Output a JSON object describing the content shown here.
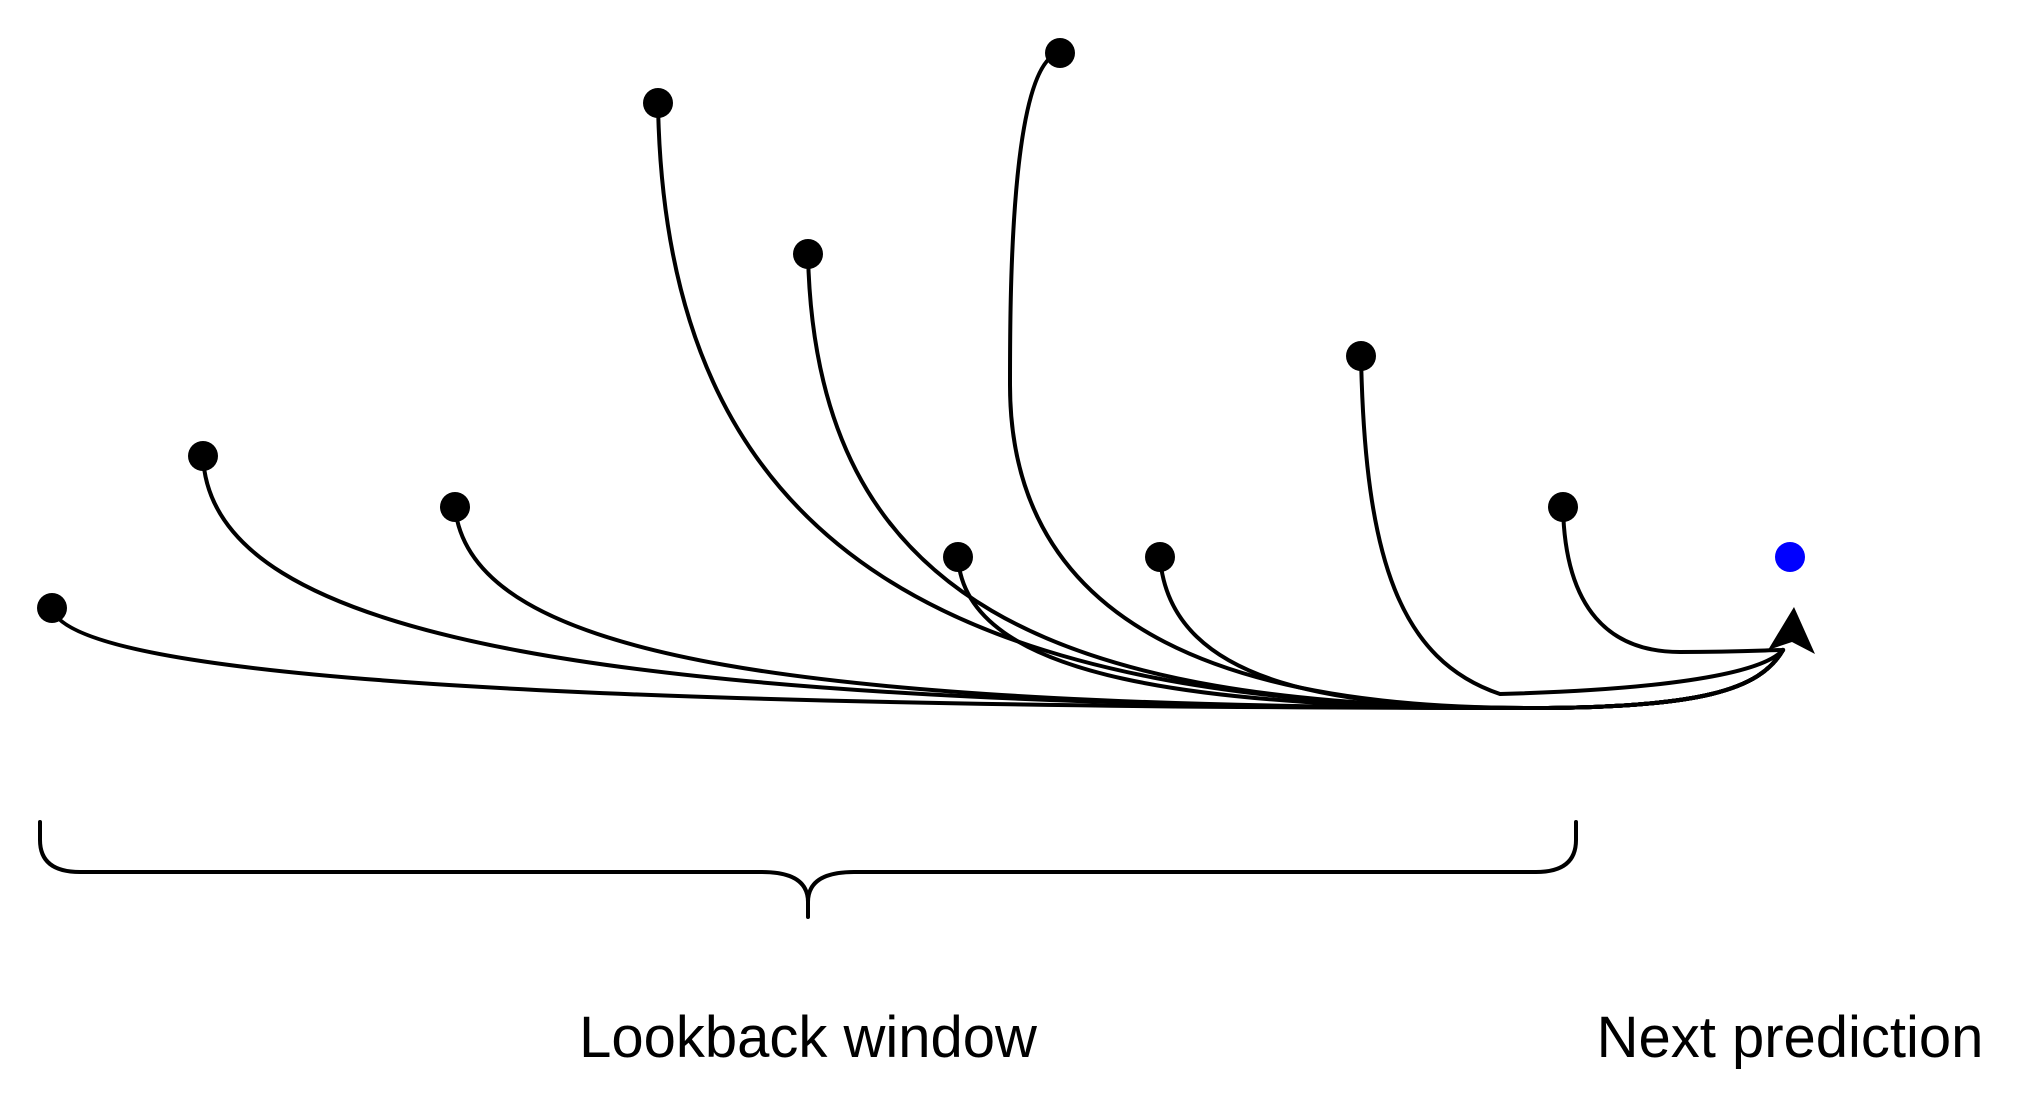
{
  "labels": {
    "lookback": "Lookback window",
    "prediction": "Next prediction"
  },
  "diagram": {
    "history_point_count": 10,
    "colors": {
      "history_point": "#000000",
      "prediction_point": "#0000ff",
      "arrow": "#000000",
      "brace": "#000000"
    }
  }
}
